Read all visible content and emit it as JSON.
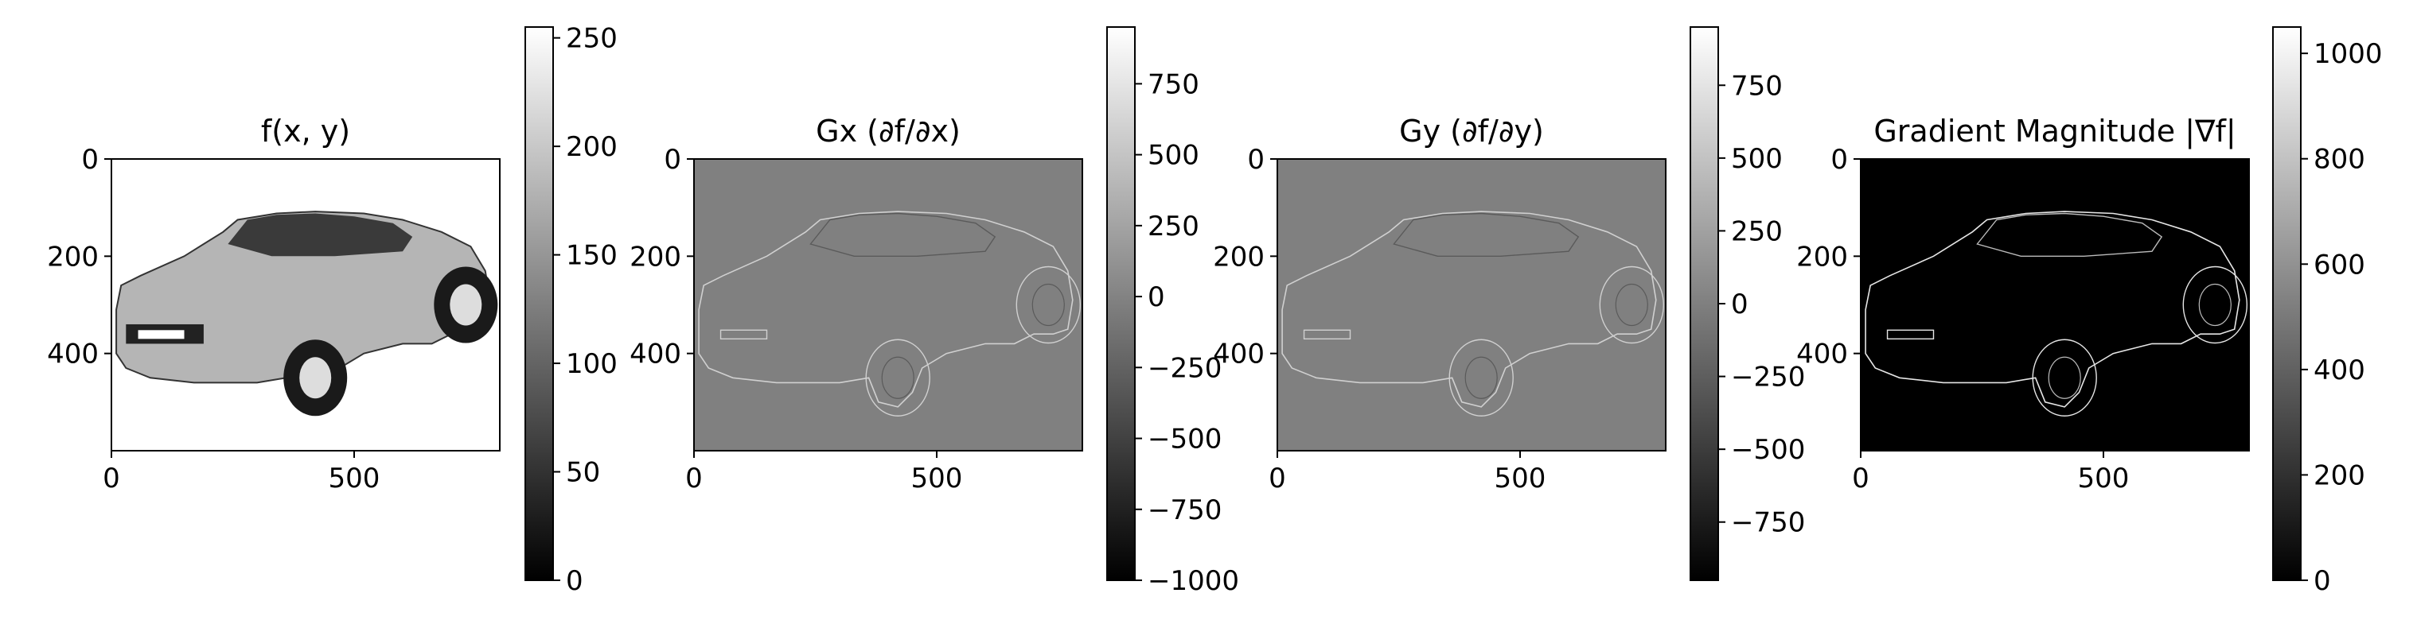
{
  "figure": {
    "background": "#ffffff"
  },
  "chart_data": [
    {
      "type": "heatmap",
      "title": "f(x, y)",
      "xlabel": "",
      "ylabel": "",
      "xlim": [
        0,
        800
      ],
      "ylim": [
        600,
        0
      ],
      "xticks": [
        0,
        500
      ],
      "yticks": [
        0,
        200,
        400
      ],
      "colormap": "gray",
      "colorbar": {
        "range": [
          0,
          255
        ],
        "ticks": [
          0,
          50,
          100,
          150,
          200,
          250
        ],
        "tick_labels": [
          "0",
          "50",
          "100",
          "150",
          "200",
          "250"
        ]
      },
      "image_background": "#ffffff",
      "image_content": "grayscale photograph of a hatchback car"
    },
    {
      "type": "heatmap",
      "title": "Gx (∂f/∂x)",
      "xlabel": "",
      "ylabel": "",
      "xlim": [
        0,
        800
      ],
      "ylim": [
        600,
        0
      ],
      "xticks": [
        0,
        500
      ],
      "yticks": [
        0,
        200,
        400
      ],
      "colormap": "gray",
      "colorbar": {
        "range": [
          -1000,
          950
        ],
        "ticks": [
          -1000,
          -750,
          -500,
          -250,
          0,
          250,
          500,
          750
        ],
        "tick_labels": [
          "−1000",
          "−750",
          "−500",
          "−250",
          "0",
          "250",
          "500",
          "750"
        ]
      },
      "image_background": "#808080",
      "image_content": "horizontal derivative (embossed edges) of the car"
    },
    {
      "type": "heatmap",
      "title": "Gy (∂f/∂y)",
      "xlabel": "",
      "ylabel": "",
      "xlim": [
        0,
        800
      ],
      "ylim": [
        600,
        0
      ],
      "xticks": [
        0,
        500
      ],
      "yticks": [
        0,
        200,
        400
      ],
      "colormap": "gray",
      "colorbar": {
        "range": [
          -950,
          950
        ],
        "ticks": [
          -750,
          -500,
          -250,
          0,
          250,
          500,
          750
        ],
        "tick_labels": [
          "−750",
          "−500",
          "−250",
          "0",
          "250",
          "500",
          "750"
        ]
      },
      "image_background": "#808080",
      "image_content": "vertical derivative (embossed edges) of the car"
    },
    {
      "type": "heatmap",
      "title": "Gradient Magnitude |∇f|",
      "xlabel": "",
      "ylabel": "",
      "xlim": [
        0,
        800
      ],
      "ylim": [
        600,
        0
      ],
      "xticks": [
        0,
        500
      ],
      "yticks": [
        0,
        200,
        400
      ],
      "colormap": "gray",
      "colorbar": {
        "range": [
          0,
          1050
        ],
        "ticks": [
          0,
          200,
          400,
          600,
          800,
          1000
        ],
        "tick_labels": [
          "0",
          "200",
          "400",
          "600",
          "800",
          "1000"
        ]
      },
      "image_background": "#000000",
      "image_content": "white edge outline of the car on black"
    }
  ]
}
